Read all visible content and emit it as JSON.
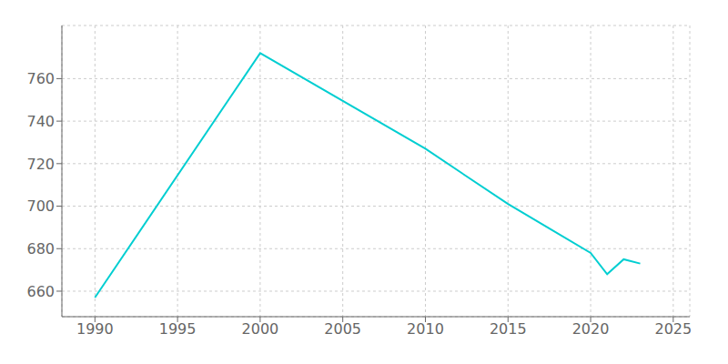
{
  "chart_data": {
    "type": "line",
    "x": [
      1990,
      2000,
      2010,
      2015,
      2020,
      2021,
      2022,
      2023
    ],
    "values": [
      657,
      772,
      727,
      701,
      678,
      668,
      675,
      673
    ],
    "color": "#00CED1",
    "xlim": [
      1988,
      2026
    ],
    "ylim": [
      648,
      785
    ],
    "xticks": [
      1990,
      1995,
      2000,
      2005,
      2010,
      2015,
      2020,
      2025
    ],
    "yticks": [
      660,
      680,
      700,
      720,
      740,
      760
    ],
    "grid": true
  }
}
